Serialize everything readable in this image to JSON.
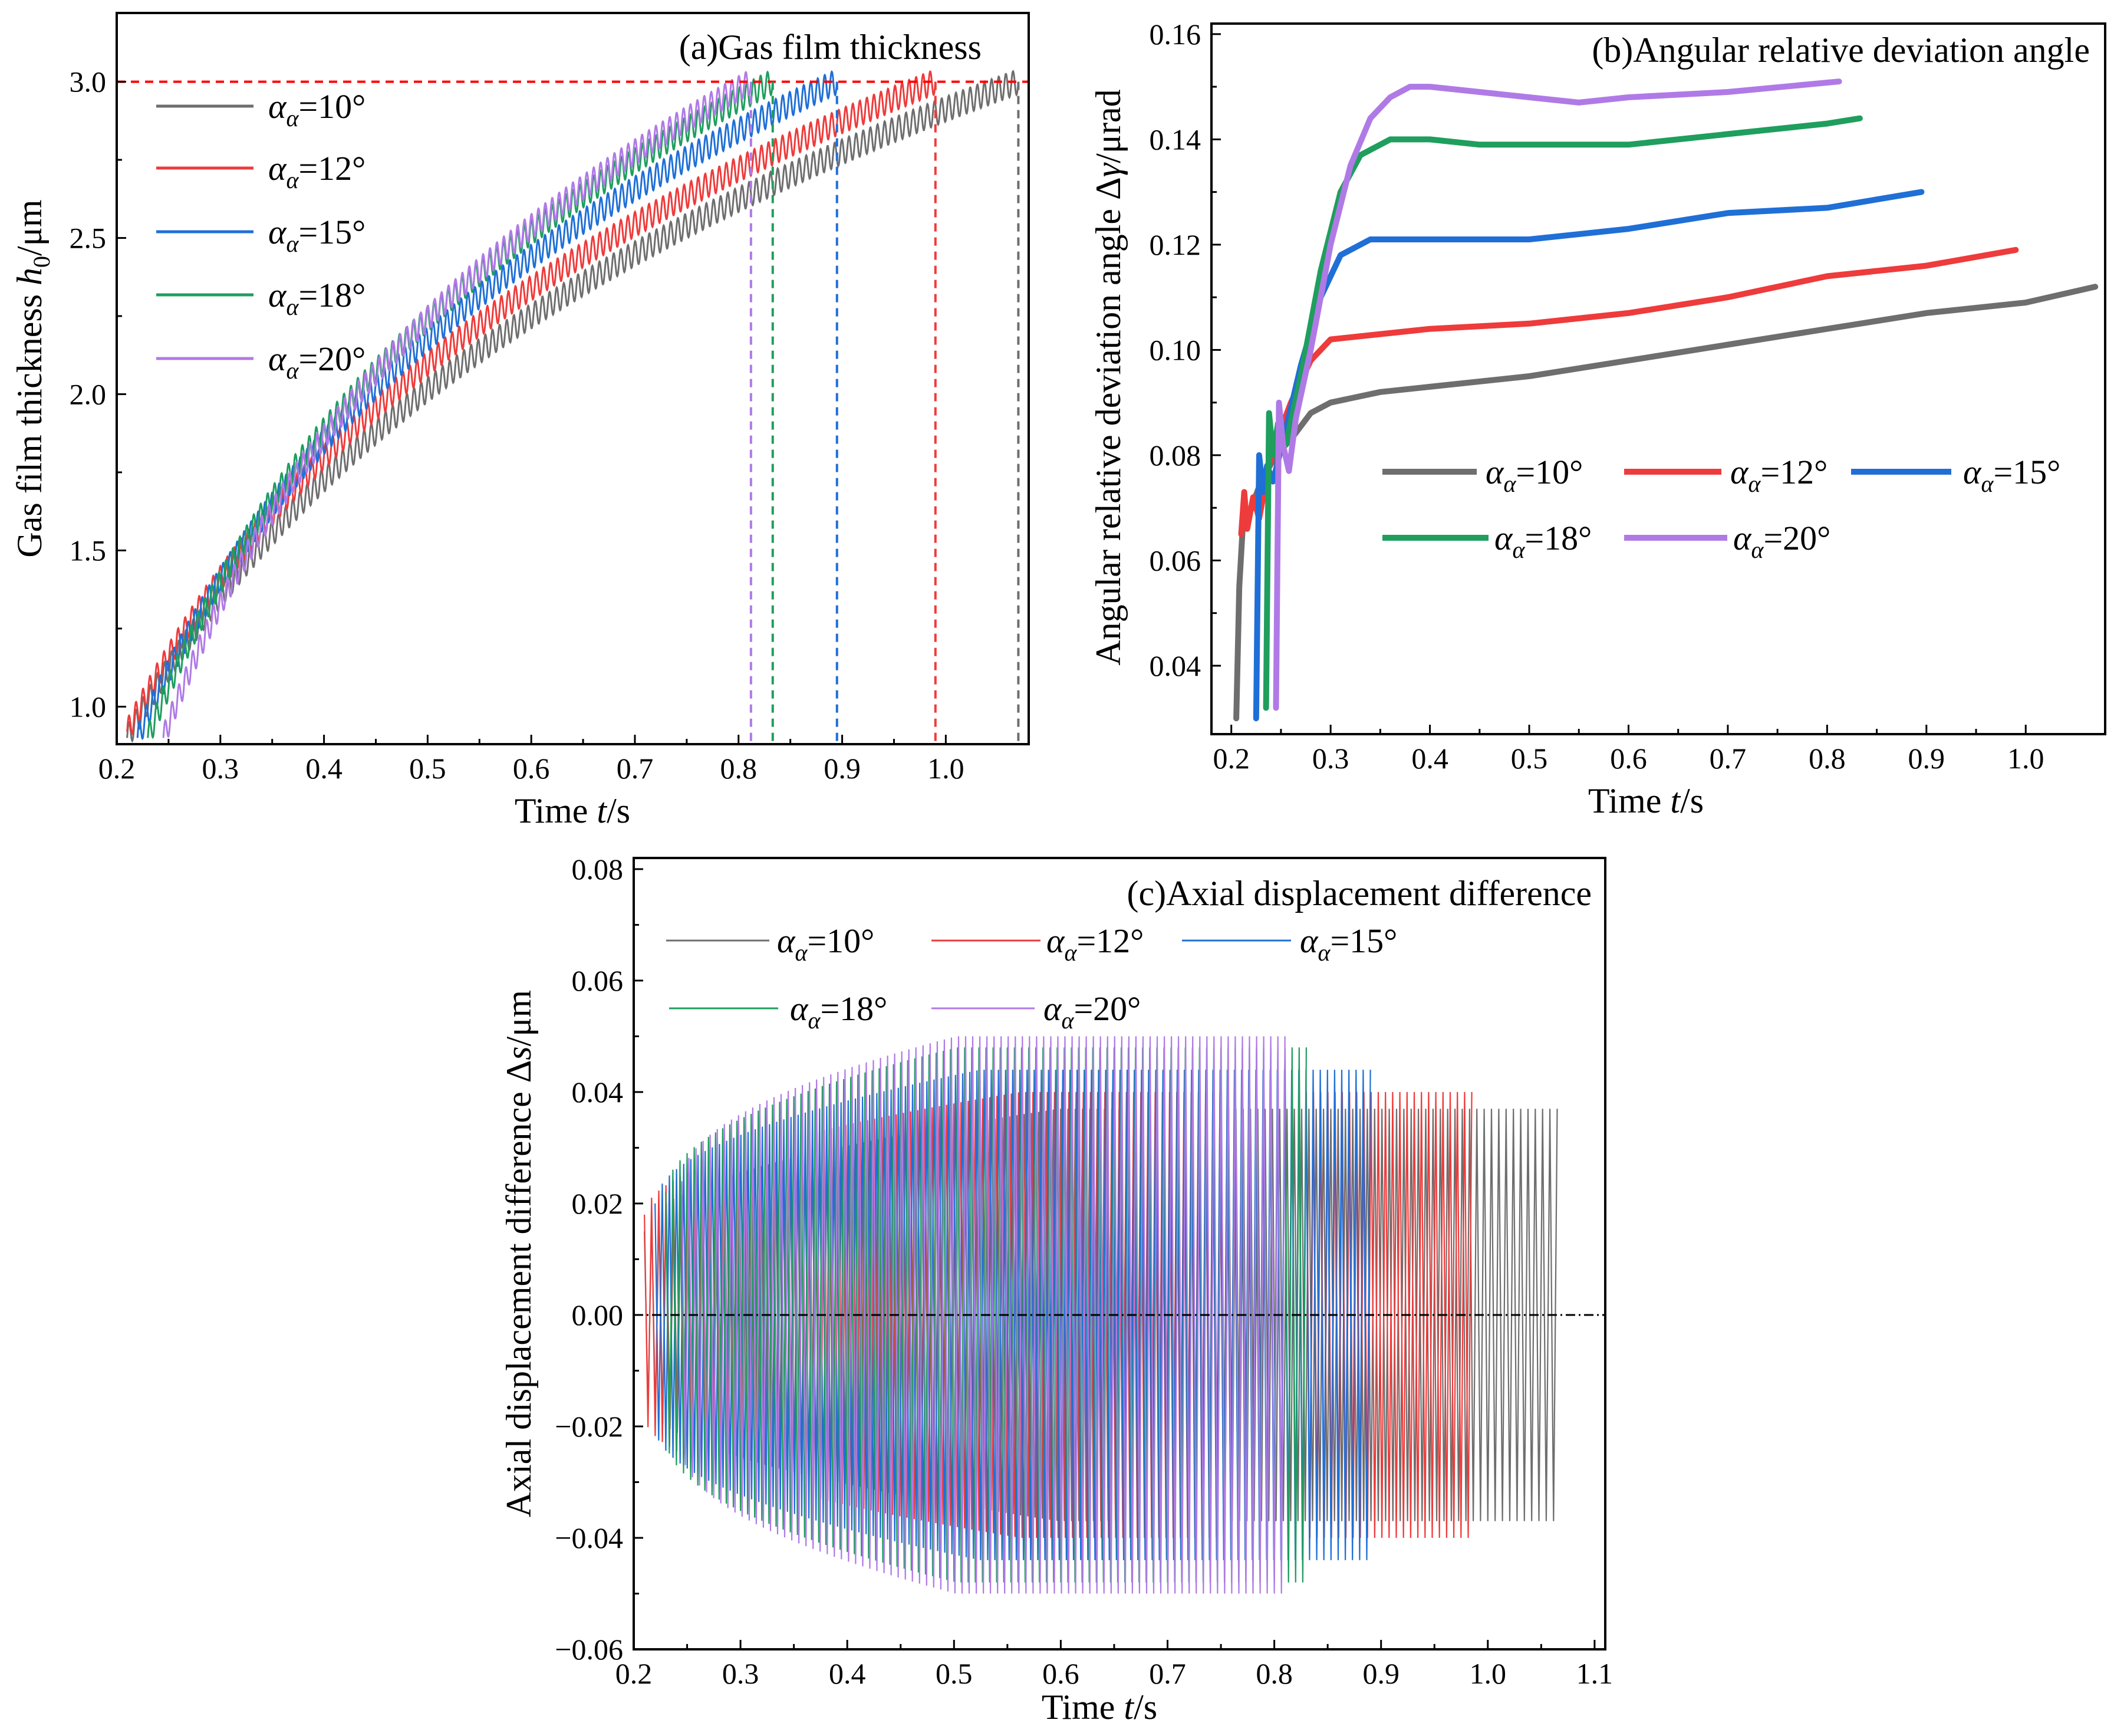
{
  "colors": {
    "s10": "#6e6e6e",
    "s12": "#ee3b3b",
    "s15": "#1f6fd6",
    "s18": "#1f9e5e",
    "s20": "#b07ae6",
    "ref_a": "#ff0000",
    "ref_b": "#000000"
  },
  "chart_data": [
    {
      "id": "a",
      "type": "line",
      "title": "(a)Gas film thickness",
      "xlabel": {
        "main": "Time ",
        "var": "t",
        "unit": "/s"
      },
      "ylabel": {
        "main": "Gas film thickness ",
        "var": "h",
        "sub": "0",
        "unit": "/μm"
      },
      "xlim": [
        0.2,
        1.08
      ],
      "ylim": [
        0.88,
        3.22
      ],
      "xticks": [
        0.2,
        0.3,
        0.4,
        0.5,
        0.6,
        0.7,
        0.8,
        0.9,
        1.0
      ],
      "xtick_labels": [
        "0.2",
        "0.3",
        "0.4",
        "0.5",
        "0.6",
        "0.7",
        "0.8",
        "0.9",
        "1.0"
      ],
      "yticks": [
        1.0,
        1.5,
        2.0,
        2.5,
        3.0
      ],
      "ytick_labels": [
        "1.0",
        "1.5",
        "2.0",
        "2.5",
        "3.0"
      ],
      "reference_line_y": 3.0,
      "legend_position": "upper-left",
      "series": [
        {
          "name": "αα=10°",
          "greek": "α",
          "sub": "α",
          "value": "=10°",
          "color_key": "s10",
          "t_start": 0.21,
          "t_end": 1.07,
          "h_start": 0.9,
          "h_end": 3.0,
          "curvature": 0.55,
          "ripple": 0.04,
          "cycles": 125
        },
        {
          "name": "αα=12°",
          "greek": "α",
          "sub": "α",
          "value": "=12°",
          "color_key": "s12",
          "t_start": 0.21,
          "t_end": 0.99,
          "h_start": 0.92,
          "h_end": 3.0,
          "curvature": 0.55,
          "ripple": 0.04,
          "cycles": 115
        },
        {
          "name": "αα=15°",
          "greek": "α",
          "sub": "α",
          "value": "=15°",
          "color_key": "s15",
          "t_start": 0.22,
          "t_end": 0.895,
          "h_start": 0.9,
          "h_end": 3.0,
          "curvature": 0.55,
          "ripple": 0.04,
          "cycles": 100
        },
        {
          "name": "αα=18°",
          "greek": "α",
          "sub": "α",
          "value": "=18°",
          "color_key": "s18",
          "t_start": 0.23,
          "t_end": 0.833,
          "h_start": 0.9,
          "h_end": 3.0,
          "curvature": 0.55,
          "ripple": 0.04,
          "cycles": 90
        },
        {
          "name": "αα=20°",
          "greek": "α",
          "sub": "α",
          "value": "=20°",
          "color_key": "s20",
          "t_start": 0.245,
          "t_end": 0.812,
          "h_start": 0.9,
          "h_end": 3.0,
          "curvature": 0.55,
          "ripple": 0.04,
          "cycles": 85
        }
      ]
    },
    {
      "id": "b",
      "type": "line",
      "title": "(b)Angular relative deviation angle",
      "xlabel": {
        "main": "Time ",
        "var": "t",
        "unit": "/s"
      },
      "ylabel": {
        "main": "Angular relative deviation angle Δ",
        "var": "γ",
        "unit": "/μrad"
      },
      "xlim": [
        0.18,
        1.08
      ],
      "ylim": [
        0.027,
        0.162
      ],
      "xticks": [
        0.2,
        0.3,
        0.4,
        0.5,
        0.6,
        0.7,
        0.8,
        0.9,
        1.0
      ],
      "xtick_labels": [
        "0.2",
        "0.3",
        "0.4",
        "0.5",
        "0.6",
        "0.7",
        "0.8",
        "0.9",
        "1.0"
      ],
      "yticks": [
        0.04,
        0.06,
        0.08,
        0.1,
        0.12,
        0.14,
        0.16
      ],
      "ytick_labels": [
        "0.04",
        "0.06",
        "0.08",
        "0.10",
        "0.12",
        "0.14",
        "0.16"
      ],
      "legend_position": "center-right",
      "series": [
        {
          "name": "αα=10°",
          "greek": "α",
          "sub": "α",
          "value": "=10°",
          "color_key": "s10",
          "x": [
            0.205,
            0.208,
            0.212,
            0.22,
            0.23,
            0.245,
            0.26,
            0.28,
            0.3,
            0.35,
            0.4,
            0.5,
            0.6,
            0.7,
            0.8,
            0.9,
            1.0,
            1.07
          ],
          "y": [
            0.03,
            0.055,
            0.068,
            0.07,
            0.075,
            0.08,
            0.083,
            0.088,
            0.09,
            0.092,
            0.093,
            0.095,
            0.098,
            0.101,
            0.104,
            0.107,
            0.109,
            0.112
          ]
        },
        {
          "name": "αα=12°",
          "greek": "α",
          "sub": "α",
          "value": "=12°",
          "color_key": "s12",
          "x": [
            0.21,
            0.213,
            0.216,
            0.222,
            0.228,
            0.24,
            0.26,
            0.28,
            0.3,
            0.35,
            0.4,
            0.5,
            0.6,
            0.7,
            0.8,
            0.9,
            0.99
          ],
          "y": [
            0.065,
            0.073,
            0.066,
            0.072,
            0.068,
            0.08,
            0.09,
            0.098,
            0.102,
            0.103,
            0.104,
            0.105,
            0.107,
            0.11,
            0.114,
            0.116,
            0.119
          ]
        },
        {
          "name": "αα=15°",
          "greek": "α",
          "sub": "α",
          "value": "=15°",
          "color_key": "s15",
          "x": [
            0.225,
            0.228,
            0.232,
            0.236,
            0.242,
            0.255,
            0.27,
            0.29,
            0.31,
            0.34,
            0.4,
            0.5,
            0.6,
            0.7,
            0.8,
            0.895
          ],
          "y": [
            0.03,
            0.08,
            0.073,
            0.078,
            0.075,
            0.085,
            0.097,
            0.11,
            0.118,
            0.121,
            0.121,
            0.121,
            0.123,
            0.126,
            0.127,
            0.13
          ]
        },
        {
          "name": "αα=18°",
          "greek": "α",
          "sub": "α",
          "value": "=18°",
          "color_key": "s18",
          "x": [
            0.235,
            0.238,
            0.242,
            0.247,
            0.255,
            0.27,
            0.29,
            0.31,
            0.33,
            0.36,
            0.4,
            0.45,
            0.5,
            0.6,
            0.7,
            0.8,
            0.833
          ],
          "y": [
            0.032,
            0.088,
            0.08,
            0.086,
            0.082,
            0.095,
            0.115,
            0.13,
            0.137,
            0.14,
            0.14,
            0.139,
            0.139,
            0.139,
            0.141,
            0.143,
            0.144
          ]
        },
        {
          "name": "αα=20°",
          "greek": "α",
          "sub": "α",
          "value": "=20°",
          "color_key": "s20",
          "x": [
            0.245,
            0.248,
            0.252,
            0.258,
            0.265,
            0.28,
            0.3,
            0.32,
            0.34,
            0.36,
            0.38,
            0.4,
            0.45,
            0.5,
            0.55,
            0.6,
            0.7,
            0.812
          ],
          "y": [
            0.032,
            0.09,
            0.082,
            0.077,
            0.087,
            0.1,
            0.12,
            0.135,
            0.144,
            0.148,
            0.15,
            0.15,
            0.149,
            0.148,
            0.147,
            0.148,
            0.149,
            0.151
          ]
        }
      ]
    },
    {
      "id": "c",
      "type": "line",
      "title": "(c)Axial displacement difference",
      "xlabel": {
        "main": "Time ",
        "var": "t",
        "unit": "/s"
      },
      "ylabel": {
        "main": "Axial displacement difference Δ",
        "var": "s",
        "unit": "/μm"
      },
      "xlim": [
        0.2,
        1.11
      ],
      "ylim": [
        -0.06,
        0.082
      ],
      "xticks": [
        0.2,
        0.3,
        0.4,
        0.5,
        0.6,
        0.7,
        0.8,
        0.9,
        1.0,
        1.1
      ],
      "xtick_labels": [
        "0.2",
        "0.3",
        "0.4",
        "0.5",
        "0.6",
        "0.7",
        "0.8",
        "0.9",
        "1.0",
        "1.1"
      ],
      "yticks": [
        -0.06,
        -0.04,
        -0.02,
        0.0,
        0.02,
        0.04,
        0.06,
        0.08
      ],
      "ytick_labels": [
        "−0.06",
        "−0.04",
        "−0.02",
        "0.00",
        "0.02",
        "0.04",
        "0.06",
        "0.08"
      ],
      "reference_line_y": 0.0,
      "legend_position": "top",
      "series": [
        {
          "name": "αα=10°",
          "greek": "α",
          "sub": "α",
          "value": "=10°",
          "color_key": "s10",
          "t_start": 0.21,
          "t_end": 1.065,
          "amp_start": 0.015,
          "amp_end": 0.037,
          "cycles": 125
        },
        {
          "name": "αα=12°",
          "greek": "α",
          "sub": "α",
          "value": "=12°",
          "color_key": "s12",
          "t_start": 0.21,
          "t_end": 0.985,
          "amp_start": 0.018,
          "amp_end": 0.04,
          "cycles": 115
        },
        {
          "name": "αα=15°",
          "greek": "α",
          "sub": "α",
          "value": "=15°",
          "color_key": "s15",
          "t_start": 0.22,
          "t_end": 0.89,
          "amp_start": 0.02,
          "amp_end": 0.044,
          "cycles": 100
        },
        {
          "name": "αα=18°",
          "greek": "α",
          "sub": "α",
          "value": "=18°",
          "color_key": "s18",
          "t_start": 0.23,
          "t_end": 0.83,
          "amp_start": 0.022,
          "amp_end": 0.048,
          "cycles": 90
        },
        {
          "name": "αα=20°",
          "greek": "α",
          "sub": "α",
          "value": "=20°",
          "color_key": "s20",
          "t_start": 0.245,
          "t_end": 0.81,
          "amp_start": 0.024,
          "amp_end": 0.05,
          "cycles": 85
        }
      ]
    }
  ]
}
